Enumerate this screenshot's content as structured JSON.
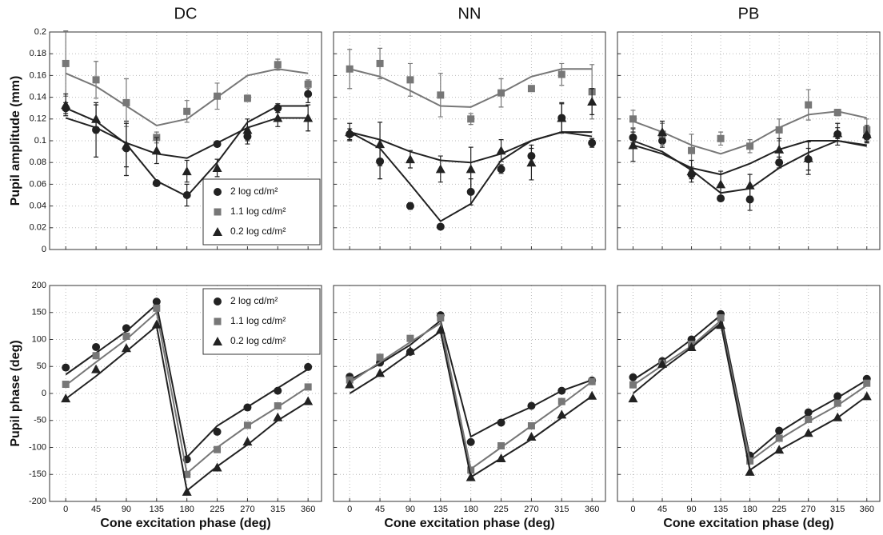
{
  "chart_data": [
    {
      "type": "scatter",
      "title": "DC",
      "ylabel": "Pupil amplitude (mm)",
      "x": [
        0,
        45,
        90,
        135,
        180,
        225,
        270,
        315,
        360
      ],
      "xlim": [
        -24,
        380
      ],
      "ylim": [
        0,
        0.2
      ],
      "xticks": [
        0,
        45,
        90,
        135,
        180,
        225,
        270,
        315,
        360
      ],
      "yticks": [
        0,
        0.02,
        0.04,
        0.06,
        0.08,
        0.1,
        0.12,
        0.14,
        0.16,
        0.18,
        0.2
      ],
      "xtick_labels": false,
      "ytick_labels": true,
      "grid": true,
      "legend": "lower right",
      "series": [
        {
          "name": "2 log cd/m²",
          "color": "#222222",
          "marker": "circle",
          "values": [
            0.13,
            0.11,
            0.093,
            0.061,
            0.05,
            0.097,
            0.104,
            0.13,
            0.143
          ],
          "errors": [
            0.005,
            0.025,
            0.025,
            0.002,
            0.01,
            0.002,
            0.007,
            0.004,
            0.008
          ],
          "fit": [
            0.13,
            0.118,
            0.097,
            0.063,
            0.049,
            0.08,
            0.117,
            0.132,
            0.132
          ]
        },
        {
          "name": "1.1 log cd/m²",
          "color": "#777777",
          "marker": "square",
          "values": [
            0.171,
            0.156,
            0.135,
            0.103,
            0.127,
            0.141,
            0.139,
            0.17,
            0.152
          ],
          "errors": [
            0.03,
            0.017,
            0.022,
            0.005,
            0.01,
            0.012,
            0.003,
            0.005,
            0.004
          ],
          "fit": [
            0.162,
            0.15,
            0.132,
            0.114,
            0.12,
            0.14,
            0.16,
            0.166,
            0.162
          ]
        },
        {
          "name": "0.2 log cd/m²",
          "color": "#222222",
          "marker": "triangle",
          "values": [
            0.133,
            0.12,
            0.096,
            0.091,
            0.072,
            0.075,
            0.11,
            0.121,
            0.121
          ],
          "errors": [
            0.01,
            0.013,
            0.02,
            0.012,
            0.01,
            0.008,
            0.01,
            0.008,
            0.012
          ],
          "fit": [
            0.121,
            0.112,
            0.098,
            0.088,
            0.084,
            0.098,
            0.112,
            0.121,
            0.121
          ]
        }
      ]
    },
    {
      "type": "scatter",
      "title": "NN",
      "x": [
        0,
        45,
        90,
        135,
        180,
        225,
        270,
        315,
        360
      ],
      "xlim": [
        -24,
        380
      ],
      "ylim": [
        0,
        0.2
      ],
      "xticks": [
        0,
        45,
        90,
        135,
        180,
        225,
        270,
        315,
        360
      ],
      "yticks": [
        0,
        0.02,
        0.04,
        0.06,
        0.08,
        0.1,
        0.12,
        0.14,
        0.16,
        0.18,
        0.2
      ],
      "xtick_labels": false,
      "ytick_labels": false,
      "grid": true,
      "series": [
        {
          "color": "#222222",
          "marker": "circle",
          "values": [
            0.106,
            0.081,
            0.04,
            0.021,
            0.053,
            0.074,
            0.086,
            0.121,
            0.098
          ],
          "errors": [
            0.005,
            0.016,
            0.003,
            0.002,
            0.012,
            0.004,
            0.007,
            0.013,
            0.004
          ],
          "fit": [
            0.108,
            0.093,
            0.06,
            0.026,
            0.042,
            0.082,
            0.1,
            0.108,
            0.108
          ]
        },
        {
          "color": "#777777",
          "marker": "square",
          "values": [
            0.166,
            0.171,
            0.156,
            0.142,
            0.12,
            0.144,
            0.148,
            0.161,
            0.145
          ],
          "errors": [
            0.018,
            0.014,
            0.015,
            0.02,
            0.005,
            0.013,
            0.002,
            0.01,
            0.025
          ],
          "fit": [
            0.166,
            0.159,
            0.146,
            0.132,
            0.131,
            0.144,
            0.159,
            0.166,
            0.166
          ]
        },
        {
          "color": "#222222",
          "marker": "triangle",
          "values": [
            0.108,
            0.097,
            0.083,
            0.074,
            0.074,
            0.091,
            0.08,
            0.121,
            0.136
          ],
          "errors": [
            0.008,
            0.02,
            0.008,
            0.012,
            0.02,
            0.01,
            0.016,
            0.014,
            0.012
          ],
          "fit": [
            0.108,
            0.101,
            0.09,
            0.082,
            0.08,
            0.088,
            0.1,
            0.108,
            0.104
          ]
        }
      ]
    },
    {
      "type": "scatter",
      "title": "PB",
      "x": [
        0,
        45,
        90,
        135,
        180,
        225,
        270,
        315,
        360
      ],
      "xlim": [
        -24,
        380
      ],
      "ylim": [
        0,
        0.2
      ],
      "xticks": [
        0,
        45,
        90,
        135,
        180,
        225,
        270,
        315,
        360
      ],
      "yticks": [
        0,
        0.02,
        0.04,
        0.06,
        0.08,
        0.1,
        0.12,
        0.14,
        0.16,
        0.18,
        0.2
      ],
      "xtick_labels": false,
      "ytick_labels": false,
      "grid": true,
      "series": [
        {
          "color": "#222222",
          "marker": "circle",
          "values": [
            0.103,
            0.1,
            0.069,
            0.047,
            0.046,
            0.08,
            0.083,
            0.106,
            0.104
          ],
          "errors": [
            0.005,
            0.006,
            0.004,
            0.002,
            0.01,
            0.005,
            0.01,
            0.01,
            0.005
          ],
          "fit": [
            0.1,
            0.09,
            0.073,
            0.052,
            0.056,
            0.075,
            0.089,
            0.1,
            0.096
          ]
        },
        {
          "color": "#777777",
          "marker": "square",
          "values": [
            0.12,
            0.106,
            0.091,
            0.102,
            0.095,
            0.11,
            0.133,
            0.126,
            0.11
          ],
          "errors": [
            0.008,
            0.01,
            0.015,
            0.006,
            0.006,
            0.01,
            0.014,
            0.003,
            0.01
          ],
          "fit": [
            0.118,
            0.108,
            0.096,
            0.088,
            0.097,
            0.112,
            0.124,
            0.127,
            0.121
          ]
        },
        {
          "color": "#222222",
          "marker": "triangle",
          "values": [
            0.096,
            0.108,
            0.072,
            0.06,
            0.059,
            0.092,
            0.084,
            0.107,
            0.106
          ],
          "errors": [
            0.015,
            0.01,
            0.01,
            0.012,
            0.01,
            0.01,
            0.015,
            0.005,
            0.008
          ],
          "fit": [
            0.096,
            0.088,
            0.075,
            0.069,
            0.079,
            0.092,
            0.1,
            0.1,
            0.095
          ]
        }
      ]
    },
    {
      "type": "scatter",
      "ylabel": "Pupil phase (deg)",
      "xlabel": "Cone excitation phase (deg)",
      "x": [
        0,
        45,
        90,
        135,
        180,
        225,
        270,
        315,
        360
      ],
      "xlim": [
        -24,
        380
      ],
      "ylim": [
        -200,
        200
      ],
      "xticks": [
        0,
        45,
        90,
        135,
        180,
        225,
        270,
        315,
        360
      ],
      "yticks": [
        -200,
        -150,
        -100,
        -50,
        0,
        50,
        100,
        150,
        200
      ],
      "xtick_labels": true,
      "ytick_labels": true,
      "grid": true,
      "legend": "upper right",
      "series": [
        {
          "name": "2 log cd/m²",
          "color": "#222222",
          "marker": "circle",
          "values": [
            48,
            86,
            121,
            170,
            -122,
            -71,
            -26,
            5,
            49
          ],
          "fit": [
            35,
            75,
            115,
            165,
            -118,
            -60,
            -25,
            10,
            45
          ]
        },
        {
          "name": "1.1 log cd/m²",
          "color": "#777777",
          "marker": "square",
          "values": [
            17,
            70,
            106,
            158,
            -150,
            -104,
            -59,
            -23,
            12
          ],
          "fit": [
            15,
            58,
            100,
            150,
            -148,
            -100,
            -60,
            -25,
            12
          ]
        },
        {
          "name": "0.2 log cd/m²",
          "color": "#222222",
          "marker": "triangle",
          "values": [
            -9,
            45,
            84,
            128,
            -182,
            -137,
            -89,
            -44,
            -14
          ],
          "fit": [
            -10,
            32,
            78,
            125,
            -180,
            -135,
            -95,
            -50,
            -15
          ]
        }
      ]
    },
    {
      "type": "scatter",
      "xlabel": "Cone excitation phase (deg)",
      "x": [
        0,
        45,
        90,
        135,
        180,
        225,
        270,
        315,
        360
      ],
      "xlim": [
        -24,
        380
      ],
      "ylim": [
        -200,
        200
      ],
      "xticks": [
        0,
        45,
        90,
        135,
        180,
        225,
        270,
        315,
        360
      ],
      "yticks": [
        -200,
        -150,
        -100,
        -50,
        0,
        50,
        100,
        150,
        200
      ],
      "xtick_labels": true,
      "ytick_labels": false,
      "grid": true,
      "series": [
        {
          "color": "#222222",
          "marker": "circle",
          "values": [
            31,
            57,
            77,
            145,
            -90,
            -54,
            -23,
            5,
            24
          ],
          "fit": [
            25,
            55,
            90,
            135,
            -80,
            -50,
            -25,
            5,
            25
          ]
        },
        {
          "color": "#777777",
          "marker": "square",
          "values": [
            25,
            67,
            102,
            140,
            -142,
            -97,
            -60,
            -15,
            22
          ],
          "fit": [
            20,
            58,
            95,
            130,
            -140,
            -100,
            -60,
            -20,
            22
          ]
        },
        {
          "color": "#222222",
          "marker": "triangle",
          "values": [
            17,
            38,
            79,
            118,
            -155,
            -120,
            -80,
            -39,
            -4
          ],
          "fit": [
            0,
            35,
            75,
            115,
            -155,
            -120,
            -85,
            -45,
            -5
          ]
        }
      ]
    },
    {
      "type": "scatter",
      "xlabel": "Cone excitation phase (deg)",
      "x": [
        0,
        45,
        90,
        135,
        180,
        225,
        270,
        315,
        360
      ],
      "xlim": [
        -24,
        380
      ],
      "ylim": [
        -200,
        200
      ],
      "xticks": [
        0,
        45,
        90,
        135,
        180,
        225,
        270,
        315,
        360
      ],
      "yticks": [
        -200,
        -150,
        -100,
        -50,
        0,
        50,
        100,
        150,
        200
      ],
      "xtick_labels": true,
      "ytick_labels": false,
      "grid": true,
      "series": [
        {
          "color": "#222222",
          "marker": "circle",
          "values": [
            30,
            60,
            100,
            147,
            -115,
            -69,
            -35,
            -5,
            27
          ],
          "fit": [
            25,
            60,
            100,
            145,
            -118,
            -72,
            -38,
            -8,
            25
          ]
        },
        {
          "color": "#777777",
          "marker": "square",
          "values": [
            16,
            56,
            91,
            140,
            -125,
            -83,
            -48,
            -18,
            19
          ],
          "fit": [
            15,
            52,
            88,
            135,
            -125,
            -85,
            -52,
            -22,
            15
          ]
        },
        {
          "color": "#222222",
          "marker": "triangle",
          "values": [
            -9,
            55,
            86,
            127,
            -145,
            -104,
            -73,
            -44,
            -5
          ],
          "fit": [
            0,
            45,
            85,
            130,
            -142,
            -105,
            -75,
            -45,
            -5
          ]
        }
      ]
    }
  ]
}
